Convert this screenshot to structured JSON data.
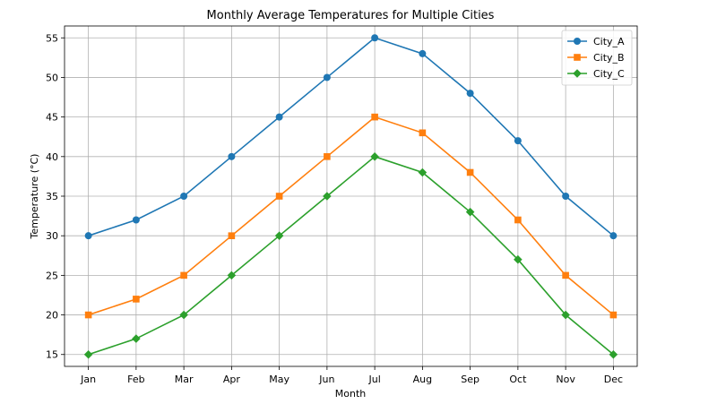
{
  "chart_data": {
    "type": "line",
    "title": "Monthly Average Temperatures for Multiple Cities",
    "xlabel": "Month",
    "ylabel": "Temperature (°C)",
    "categories": [
      "Jan",
      "Feb",
      "Mar",
      "Apr",
      "May",
      "Jun",
      "Jul",
      "Aug",
      "Sep",
      "Oct",
      "Nov",
      "Dec"
    ],
    "ylim": [
      13.5,
      56.5
    ],
    "yticks": [
      15,
      20,
      25,
      30,
      35,
      40,
      45,
      50,
      55
    ],
    "grid": true,
    "legend_position": "top-right",
    "series": [
      {
        "name": "City_A",
        "color": "#1f77b4",
        "marker": "circle",
        "values": [
          30,
          32,
          35,
          40,
          45,
          50,
          55,
          53,
          48,
          42,
          35,
          30
        ]
      },
      {
        "name": "City_B",
        "color": "#ff7f0e",
        "marker": "square",
        "values": [
          20,
          22,
          25,
          30,
          35,
          40,
          45,
          43,
          38,
          32,
          25,
          20
        ]
      },
      {
        "name": "City_C",
        "color": "#2ca02c",
        "marker": "diamond",
        "values": [
          15,
          17,
          20,
          25,
          30,
          35,
          40,
          38,
          33,
          27,
          20,
          15
        ]
      }
    ]
  }
}
